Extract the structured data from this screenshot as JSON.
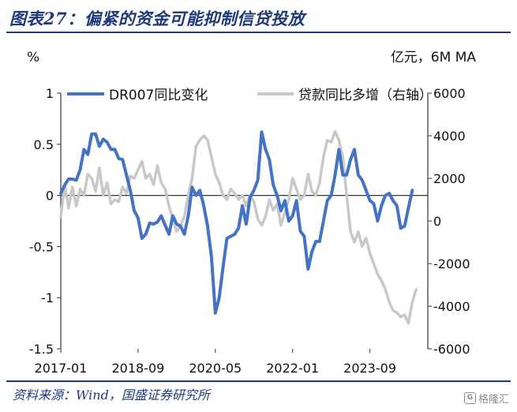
{
  "title": "图表27：偏紧的资金可能抑制信贷投放",
  "source": "资料来源：Wind，国盛证券研究所",
  "watermark": "格隆汇",
  "colors": {
    "left_series": "#4472c4",
    "right_series": "#c8c8c8",
    "title": "#1f3a78"
  },
  "chart_data": {
    "type": "line",
    "left_axis": {
      "unit_label": "%",
      "ylim": [
        -1.5,
        1
      ],
      "ticks": [
        1,
        0.5,
        0,
        -0.5,
        -1,
        -1.5
      ],
      "tick_labels": [
        "1",
        "0.5",
        "0",
        "-0.5",
        "-1",
        "-1.5"
      ]
    },
    "right_axis": {
      "unit_label": "亿元，6M MA",
      "ylim": [
        -6000,
        6000
      ],
      "ticks": [
        6000,
        4000,
        2000,
        0,
        -2000,
        -4000,
        -6000
      ],
      "tick_labels": [
        "6000",
        "4000",
        "2000",
        "0",
        "-2000",
        "-4000",
        "-6000"
      ]
    },
    "x_axis": {
      "range": [
        "2017-01",
        "2024-12"
      ],
      "ticks": [
        "2017-01",
        "2018-09",
        "2020-05",
        "2022-01",
        "2023-09"
      ],
      "grid": false
    },
    "legend_placement": "top",
    "series": [
      {
        "name": "DR007同比变化",
        "axis": "left",
        "color": "#4472c4",
        "points": [
          [
            "2017-01",
            0.02
          ],
          [
            "2017-02",
            0.1
          ],
          [
            "2017-03",
            0.16
          ],
          [
            "2017-04",
            0.16
          ],
          [
            "2017-05",
            0.15
          ],
          [
            "2017-06",
            0.25
          ],
          [
            "2017-07",
            0.45
          ],
          [
            "2017-08",
            0.4
          ],
          [
            "2017-09",
            0.6
          ],
          [
            "2017-10",
            0.6
          ],
          [
            "2017-11",
            0.48
          ],
          [
            "2017-12",
            0.55
          ],
          [
            "2018-01",
            0.52
          ],
          [
            "2018-02",
            0.45
          ],
          [
            "2018-03",
            0.45
          ],
          [
            "2018-04",
            0.36
          ],
          [
            "2018-05",
            0.35
          ],
          [
            "2018-06",
            0.2
          ],
          [
            "2018-07",
            0.05
          ],
          [
            "2018-08",
            -0.15
          ],
          [
            "2018-09",
            -0.22
          ],
          [
            "2018-10",
            -0.42
          ],
          [
            "2018-11",
            -0.38
          ],
          [
            "2018-12",
            -0.27
          ],
          [
            "2019-01",
            -0.28
          ],
          [
            "2019-02",
            -0.26
          ],
          [
            "2019-03",
            -0.2
          ],
          [
            "2019-04",
            -0.29
          ],
          [
            "2019-05",
            -0.38
          ],
          [
            "2019-06",
            -0.2
          ],
          [
            "2019-07",
            -0.28
          ],
          [
            "2019-08",
            -0.3
          ],
          [
            "2019-09",
            -0.38
          ],
          [
            "2019-10",
            -0.2
          ],
          [
            "2019-11",
            0.08
          ],
          [
            "2019-12",
            0.0
          ],
          [
            "2020-01",
            0.05
          ],
          [
            "2020-02",
            -0.1
          ],
          [
            "2020-03",
            -0.3
          ],
          [
            "2020-04",
            -0.6
          ],
          [
            "2020-05",
            -1.15
          ],
          [
            "2020-06",
            -1.0
          ],
          [
            "2020-07",
            -0.7
          ],
          [
            "2020-08",
            -0.42
          ],
          [
            "2020-09",
            -0.4
          ],
          [
            "2020-10",
            -0.38
          ],
          [
            "2020-11",
            -0.32
          ],
          [
            "2020-12",
            -0.1
          ],
          [
            "2021-01",
            -0.28
          ],
          [
            "2021-02",
            -0.02
          ],
          [
            "2021-03",
            0.05
          ],
          [
            "2021-04",
            0.15
          ],
          [
            "2021-05",
            0.62
          ],
          [
            "2021-06",
            0.45
          ],
          [
            "2021-07",
            0.35
          ],
          [
            "2021-08",
            0.1
          ],
          [
            "2021-09",
            0.0
          ],
          [
            "2021-10",
            -0.15
          ],
          [
            "2021-11",
            -0.05
          ],
          [
            "2021-12",
            -0.25
          ],
          [
            "2022-01",
            -0.2
          ],
          [
            "2022-02",
            -0.05
          ],
          [
            "2022-03",
            -0.35
          ],
          [
            "2022-04",
            -0.4
          ],
          [
            "2022-05",
            -0.72
          ],
          [
            "2022-06",
            -0.55
          ],
          [
            "2022-07",
            -0.45
          ],
          [
            "2022-08",
            -0.45
          ],
          [
            "2022-09",
            -0.25
          ],
          [
            "2022-10",
            -0.05
          ],
          [
            "2022-11",
            0.0
          ],
          [
            "2022-12",
            0.2
          ],
          [
            "2023-01",
            0.45
          ],
          [
            "2023-02",
            0.2
          ],
          [
            "2023-03",
            0.2
          ],
          [
            "2023-04",
            0.35
          ],
          [
            "2023-05",
            0.45
          ],
          [
            "2023-06",
            0.2
          ],
          [
            "2023-07",
            0.15
          ],
          [
            "2023-08",
            0.05
          ],
          [
            "2023-09",
            -0.05
          ],
          [
            "2023-10",
            -0.08
          ],
          [
            "2023-11",
            -0.25
          ],
          [
            "2023-12",
            -0.1
          ],
          [
            "2024-01",
            0.0
          ],
          [
            "2024-02",
            0.02
          ],
          [
            "2024-03",
            -0.05
          ],
          [
            "2024-04",
            -0.1
          ],
          [
            "2024-05",
            -0.32
          ],
          [
            "2024-06",
            -0.3
          ],
          [
            "2024-07",
            -0.12
          ],
          [
            "2024-08",
            0.05
          ]
        ]
      },
      {
        "name": "贷款同比多增（右轴）",
        "axis": "right",
        "color": "#c8c8c8",
        "points": [
          [
            "2017-01",
            200
          ],
          [
            "2017-02",
            1700
          ],
          [
            "2017-03",
            600
          ],
          [
            "2017-04",
            1600
          ],
          [
            "2017-05",
            700
          ],
          [
            "2017-06",
            1500
          ],
          [
            "2017-07",
            1200
          ],
          [
            "2017-08",
            2200
          ],
          [
            "2017-09",
            2000
          ],
          [
            "2017-10",
            1400
          ],
          [
            "2017-11",
            2500
          ],
          [
            "2017-12",
            1200
          ],
          [
            "2018-01",
            1800
          ],
          [
            "2018-02",
            800
          ],
          [
            "2018-03",
            1000
          ],
          [
            "2018-04",
            900
          ],
          [
            "2018-05",
            1600
          ],
          [
            "2018-06",
            1300
          ],
          [
            "2018-07",
            2100
          ],
          [
            "2018-08",
            2000
          ],
          [
            "2018-09",
            2400
          ],
          [
            "2018-10",
            2800
          ],
          [
            "2018-11",
            2000
          ],
          [
            "2018-12",
            2200
          ],
          [
            "2019-01",
            1700
          ],
          [
            "2019-02",
            2600
          ],
          [
            "2019-03",
            1800
          ],
          [
            "2019-04",
            1500
          ],
          [
            "2019-05",
            700
          ],
          [
            "2019-06",
            100
          ],
          [
            "2019-07",
            -500
          ],
          [
            "2019-08",
            -200
          ],
          [
            "2019-09",
            200
          ],
          [
            "2019-10",
            1200
          ],
          [
            "2019-11",
            2000
          ],
          [
            "2019-12",
            3500
          ],
          [
            "2020-01",
            3800
          ],
          [
            "2020-02",
            4000
          ],
          [
            "2020-03",
            3800
          ],
          [
            "2020-04",
            3000
          ],
          [
            "2020-05",
            2200
          ],
          [
            "2020-06",
            1800
          ],
          [
            "2020-07",
            1200
          ],
          [
            "2020-08",
            1000
          ],
          [
            "2020-09",
            1500
          ],
          [
            "2020-10",
            1300
          ],
          [
            "2020-11",
            1000
          ],
          [
            "2020-12",
            1200
          ],
          [
            "2021-01",
            700
          ],
          [
            "2021-02",
            1200
          ],
          [
            "2021-03",
            900
          ],
          [
            "2021-04",
            100
          ],
          [
            "2021-05",
            -200
          ],
          [
            "2021-06",
            200
          ],
          [
            "2021-07",
            1000
          ],
          [
            "2021-08",
            500
          ],
          [
            "2021-09",
            800
          ],
          [
            "2021-10",
            -200
          ],
          [
            "2021-11",
            400
          ],
          [
            "2021-12",
            1000
          ],
          [
            "2022-01",
            2000
          ],
          [
            "2022-02",
            1500
          ],
          [
            "2022-03",
            1000
          ],
          [
            "2022-04",
            1200
          ],
          [
            "2022-05",
            2200
          ],
          [
            "2022-06",
            1400
          ],
          [
            "2022-07",
            1200
          ],
          [
            "2022-08",
            1800
          ],
          [
            "2022-09",
            3000
          ],
          [
            "2022-10",
            3800
          ],
          [
            "2022-11",
            3700
          ],
          [
            "2022-12",
            4200
          ],
          [
            "2023-01",
            3800
          ],
          [
            "2023-02",
            3000
          ],
          [
            "2023-03",
            1200
          ],
          [
            "2023-04",
            -500
          ],
          [
            "2023-05",
            -1000
          ],
          [
            "2023-06",
            -500
          ],
          [
            "2023-07",
            -1200
          ],
          [
            "2023-08",
            -800
          ],
          [
            "2023-09",
            -1500
          ],
          [
            "2023-10",
            -2000
          ],
          [
            "2023-11",
            -2500
          ],
          [
            "2023-12",
            -2800
          ],
          [
            "2024-01",
            -3200
          ],
          [
            "2024-02",
            -3800
          ],
          [
            "2024-03",
            -4200
          ],
          [
            "2024-04",
            -4300
          ],
          [
            "2024-05",
            -4500
          ],
          [
            "2024-06",
            -4400
          ],
          [
            "2024-07",
            -4800
          ],
          [
            "2024-08",
            -3800
          ],
          [
            "2024-09",
            -3200
          ]
        ]
      }
    ]
  }
}
